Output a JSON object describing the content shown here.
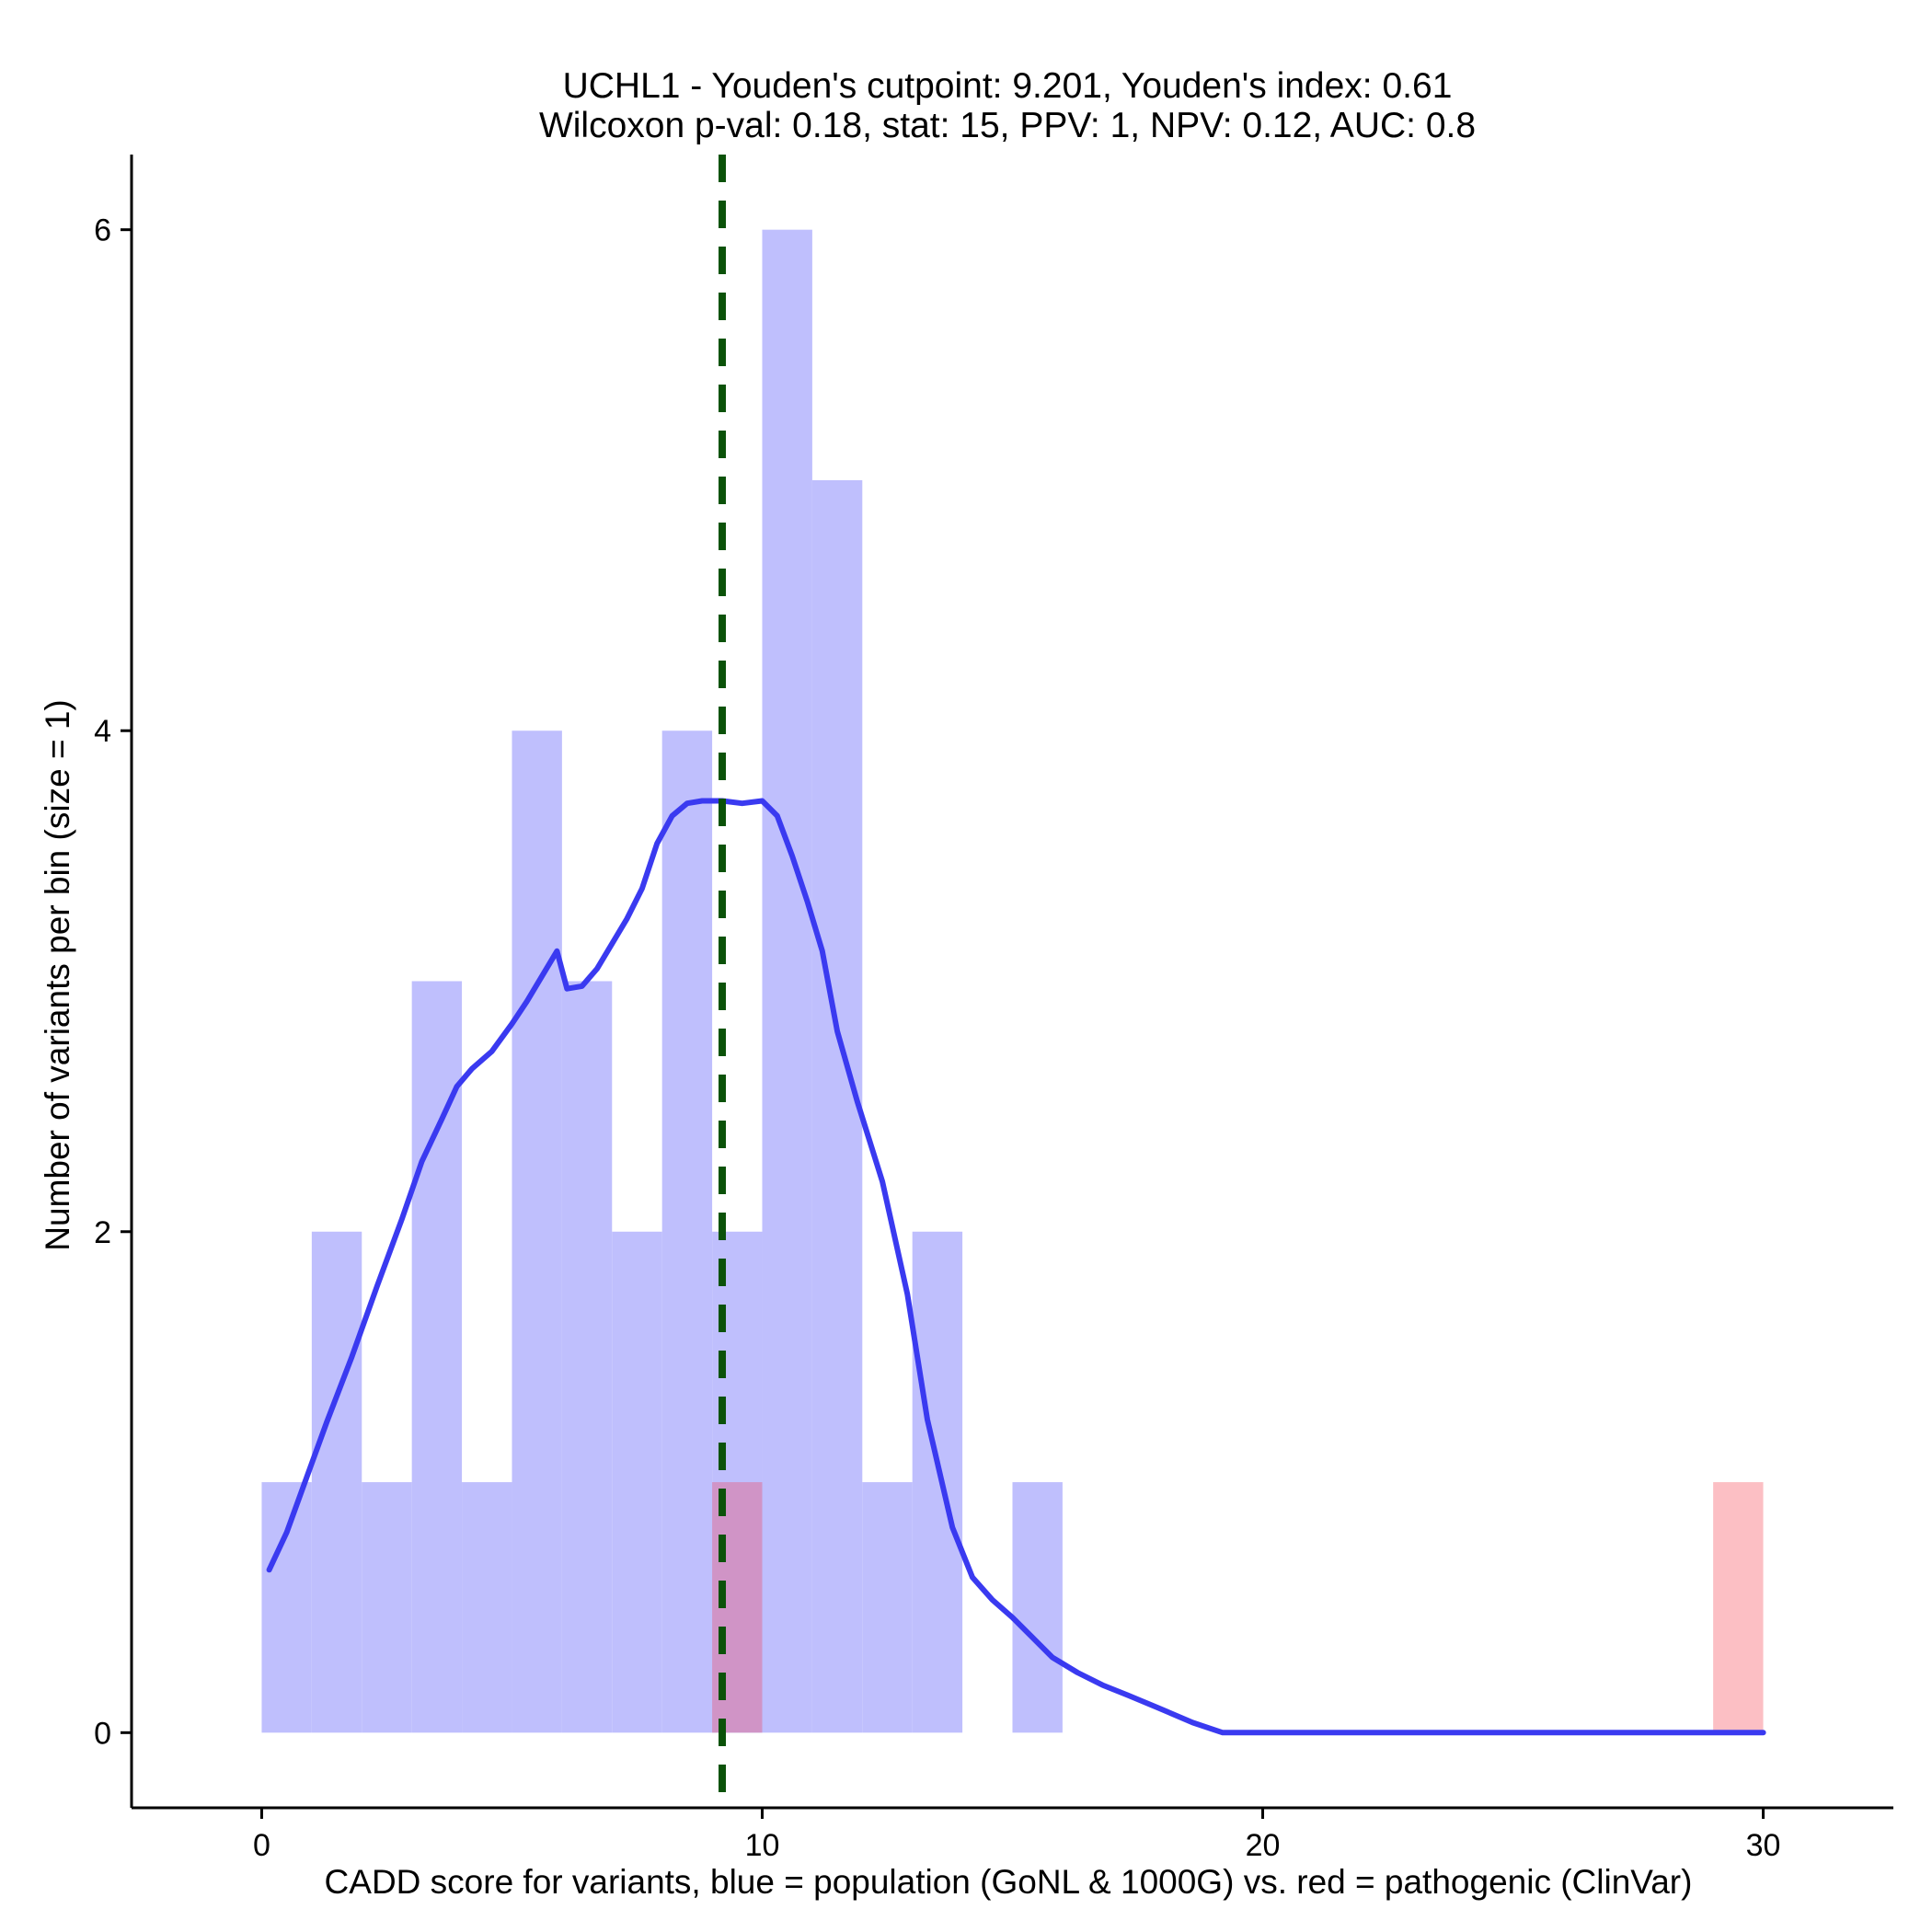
{
  "chart_data": {
    "type": "bar",
    "title_line1": "UCHL1 - Youden's cutpoint: 9.201, Youden's index: 0.61",
    "title_line2": "Wilcoxon p-val: 0.18, stat: 15, PPV: 1, NPV: 0.12, AUC: 0.8",
    "xlabel": "CADD score for variants, blue = population (GoNL & 1000G) vs. red = pathogenic (ClinVar)",
    "ylabel": "Number of variants per bin (size = 1)",
    "xlim": [
      -2.6,
      32.6
    ],
    "ylim": [
      -0.3,
      6.3
    ],
    "xticks": [
      0,
      10,
      20,
      30
    ],
    "yticks": [
      0,
      2,
      4,
      6
    ],
    "bin_width": 1,
    "colors": {
      "population_bars": "#bfbffd",
      "pathogenic_bars": "#fcbfc4",
      "overlap_bars": "#d094c6",
      "density_line": "#3a3af0",
      "cutpoint_line": "#0b5209",
      "axis": "#000000"
    },
    "series": [
      {
        "name": "population (GoNL & 1000G)",
        "bins": [
          {
            "start": 0,
            "count": 1
          },
          {
            "start": 1,
            "count": 2
          },
          {
            "start": 2,
            "count": 1
          },
          {
            "start": 3,
            "count": 3
          },
          {
            "start": 4,
            "count": 1
          },
          {
            "start": 5,
            "count": 4
          },
          {
            "start": 6,
            "count": 3
          },
          {
            "start": 7,
            "count": 2
          },
          {
            "start": 8,
            "count": 4
          },
          {
            "start": 9,
            "count": 2
          },
          {
            "start": 10,
            "count": 6
          },
          {
            "start": 11,
            "count": 5
          },
          {
            "start": 12,
            "count": 1
          },
          {
            "start": 13,
            "count": 2
          },
          {
            "start": 15,
            "count": 1
          }
        ]
      },
      {
        "name": "pathogenic (ClinVar)",
        "bins": [
          {
            "start": 9,
            "count": 1
          },
          {
            "start": 29,
            "count": 1
          }
        ]
      }
    ],
    "density_curve": {
      "x": [
        0.15,
        0.5,
        0.9,
        1.3,
        1.8,
        2.3,
        2.8,
        3.2,
        3.6,
        3.9,
        4.2,
        4.6,
        5.0,
        5.3,
        5.6,
        5.9,
        6.1,
        6.4,
        6.7,
        7.0,
        7.3,
        7.6,
        7.9,
        8.2,
        8.5,
        8.8,
        9.2,
        9.6,
        10.0,
        10.3,
        10.6,
        10.9,
        11.2,
        11.5,
        11.9,
        12.4,
        12.9,
        13.3,
        13.8,
        14.2,
        14.6,
        15.0,
        15.4,
        15.8,
        16.3,
        16.8,
        17.3,
        17.9,
        18.6,
        19.2,
        19.5,
        20,
        22,
        24,
        26,
        28,
        30
      ],
      "y": [
        0.65,
        0.8,
        1.02,
        1.24,
        1.5,
        1.78,
        2.05,
        2.28,
        2.45,
        2.58,
        2.65,
        2.72,
        2.83,
        2.92,
        3.02,
        3.12,
        2.97,
        2.98,
        3.05,
        3.15,
        3.25,
        3.37,
        3.55,
        3.66,
        3.71,
        3.72,
        3.72,
        3.71,
        3.72,
        3.66,
        3.5,
        3.32,
        3.12,
        2.8,
        2.52,
        2.2,
        1.75,
        1.25,
        0.82,
        0.62,
        0.53,
        0.46,
        0.38,
        0.3,
        0.24,
        0.19,
        0.15,
        0.1,
        0.04,
        0.0,
        0.0,
        0.0,
        0.0,
        0.0,
        0.0,
        0.0,
        0.0
      ]
    },
    "cutpoint": 9.201,
    "grid": false,
    "legend": "none"
  }
}
